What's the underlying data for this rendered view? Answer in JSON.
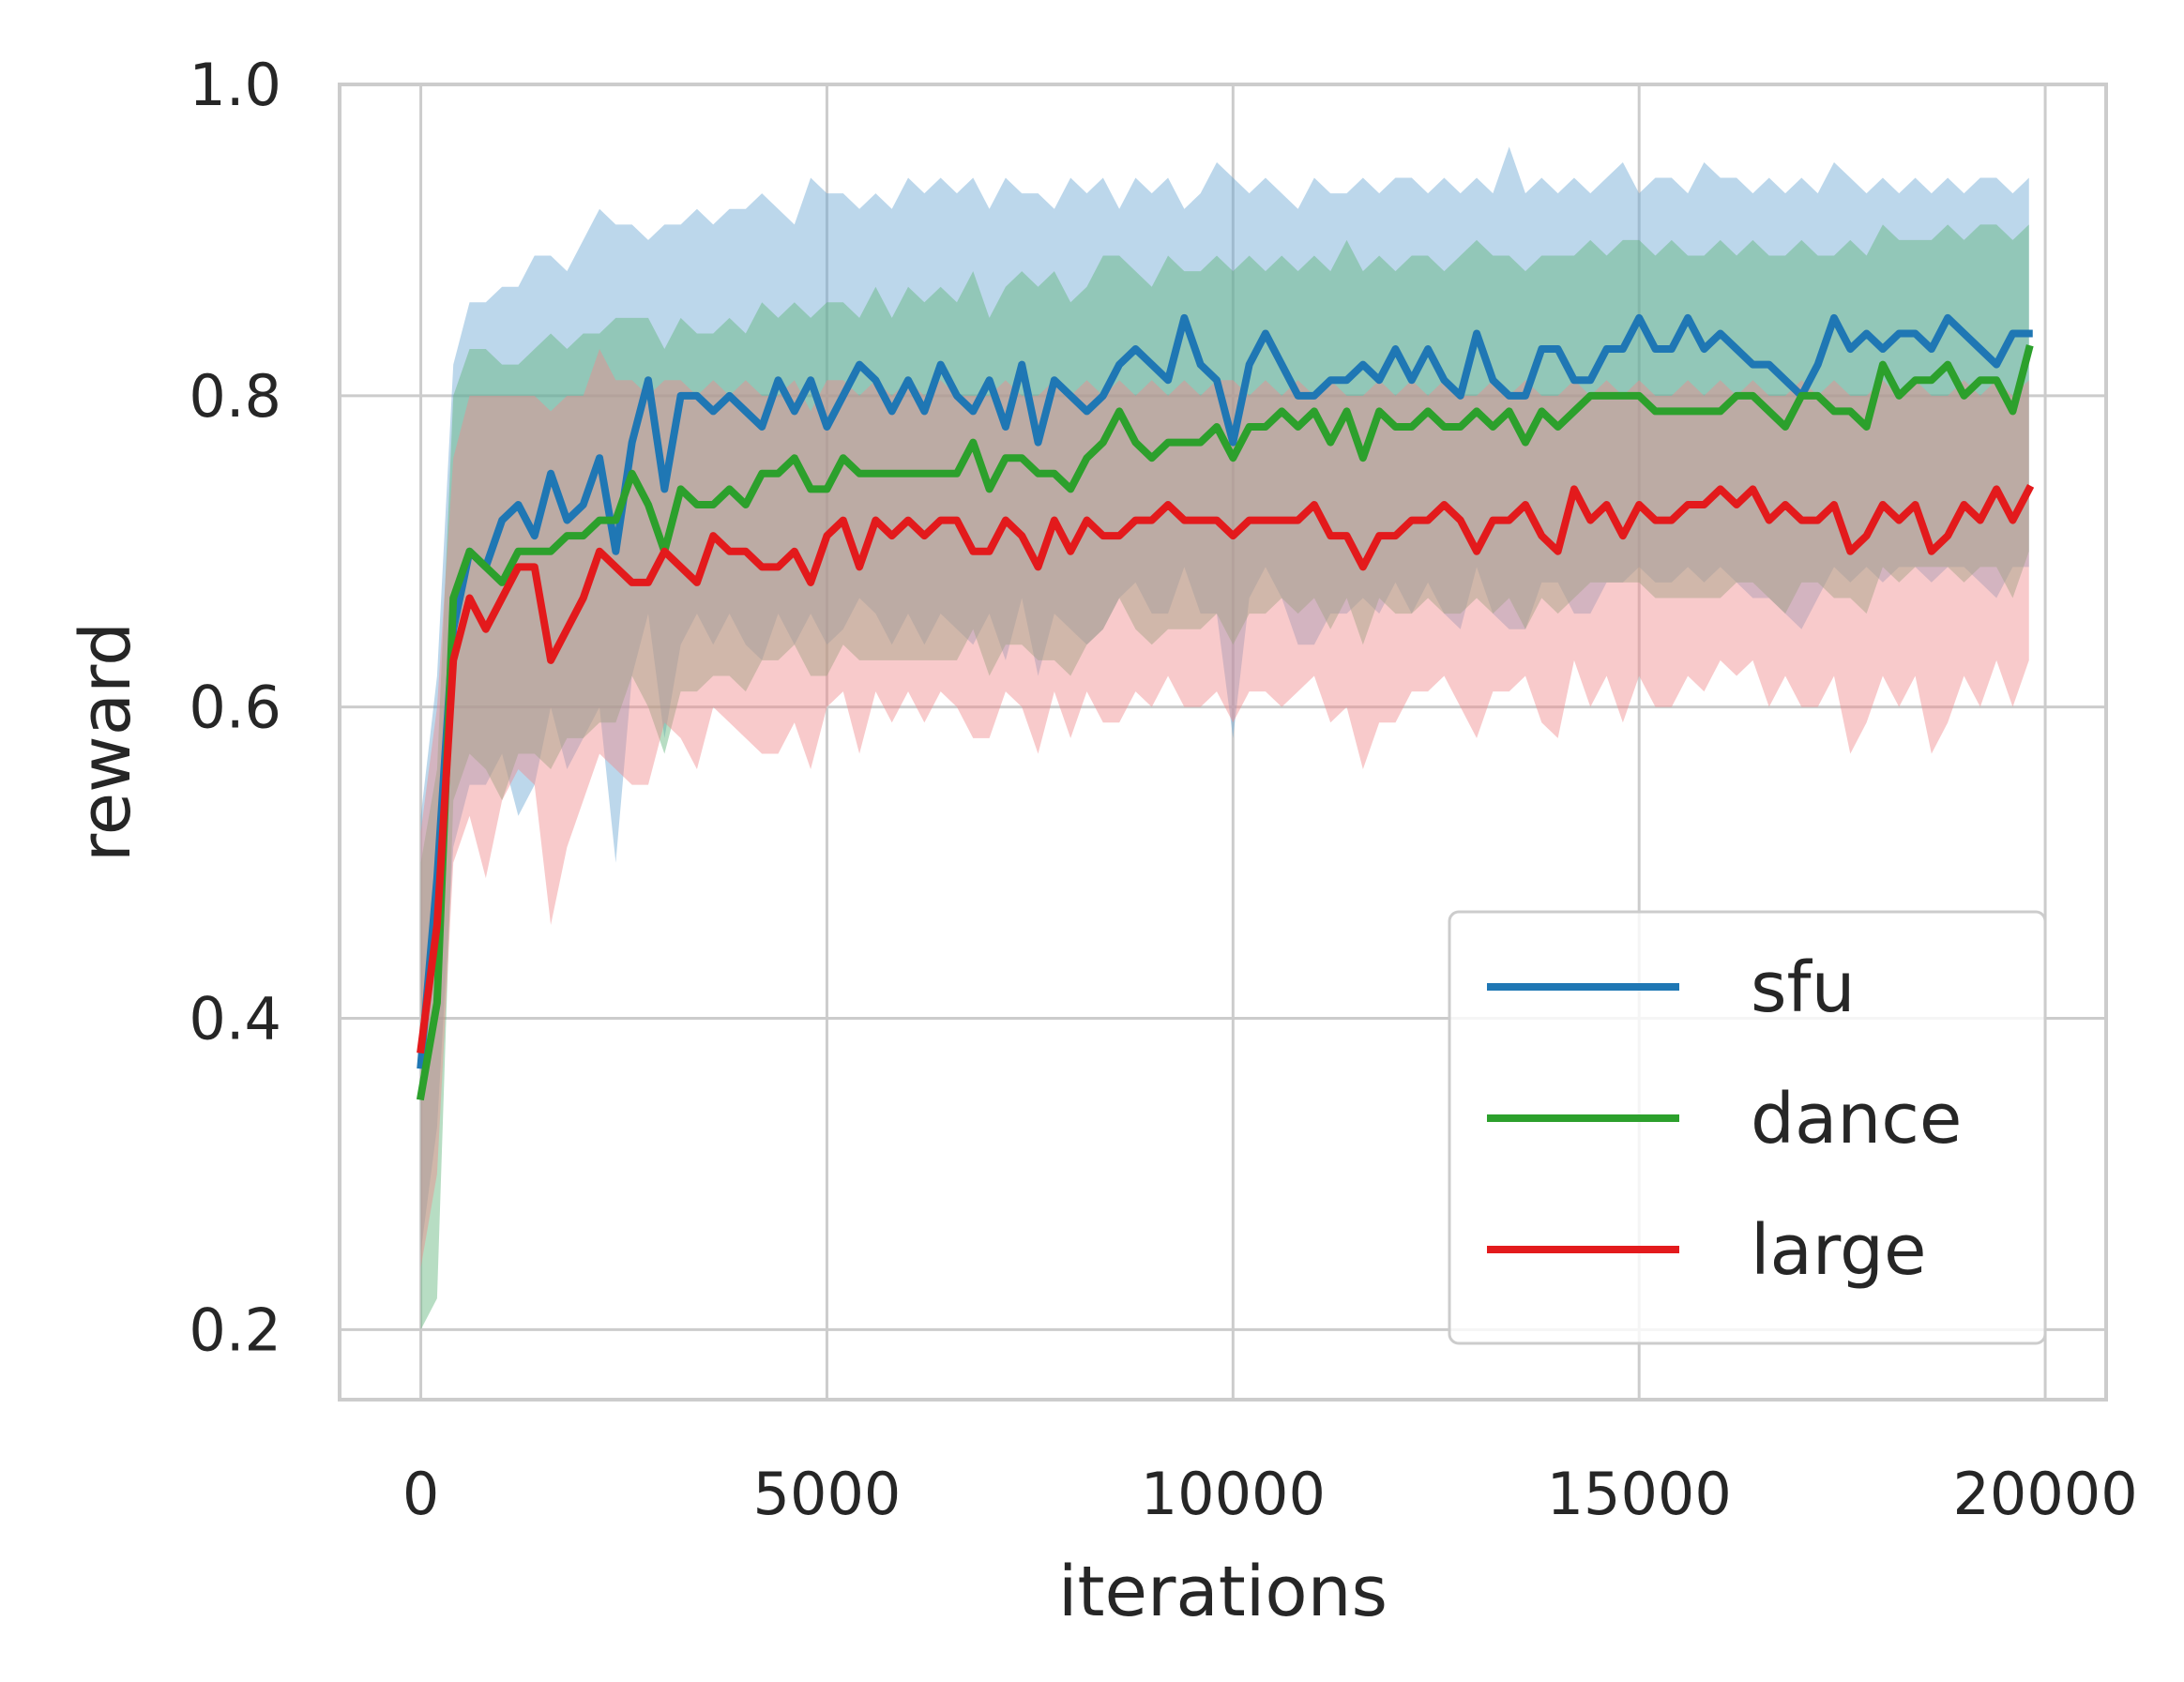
{
  "chart_data": {
    "type": "line",
    "xlabel": "iterations",
    "ylabel": "reward",
    "xlim": [
      -1000,
      20750
    ],
    "ylim": [
      0.155,
      1.0
    ],
    "xticks": [
      0,
      5000,
      10000,
      15000,
      20000
    ],
    "yticks": [
      0.2,
      0.4,
      0.6,
      0.8,
      1.0
    ],
    "xtick_labels": [
      "0",
      "5000",
      "10000",
      "15000",
      "20000"
    ],
    "ytick_labels": [
      "0.2",
      "0.4",
      "0.6",
      "0.8",
      "1.0"
    ],
    "grid": true,
    "legend_position": "lower right",
    "x": [
      0,
      200,
      400,
      600,
      800,
      1000,
      1200,
      1400,
      1600,
      1800,
      2000,
      2200,
      2400,
      2600,
      2800,
      3000,
      3200,
      3400,
      3600,
      3800,
      4000,
      4200,
      4400,
      4600,
      4800,
      5000,
      5200,
      5400,
      5600,
      5800,
      6000,
      6200,
      6400,
      6600,
      6800,
      7000,
      7200,
      7400,
      7600,
      7800,
      8000,
      8200,
      8400,
      8600,
      8800,
      9000,
      9200,
      9400,
      9600,
      9800,
      10000,
      10200,
      10400,
      10600,
      10800,
      11000,
      11200,
      11400,
      11600,
      11800,
      12000,
      12200,
      12400,
      12600,
      12800,
      13000,
      13200,
      13400,
      13600,
      13800,
      14000,
      14200,
      14400,
      14600,
      14800,
      15000,
      15200,
      15400,
      15600,
      15800,
      16000,
      16200,
      16400,
      16600,
      16800,
      17000,
      17200,
      17400,
      17600,
      17800,
      18000,
      18200,
      18400,
      18600,
      18800,
      19000,
      19200,
      19400,
      19600,
      19800
    ],
    "series": [
      {
        "name": "sfu",
        "color": "#1f77b4",
        "band_color": "#6aa6d3",
        "mean": [
          0.37,
          0.49,
          0.65,
          0.7,
          0.69,
          0.72,
          0.73,
          0.71,
          0.75,
          0.72,
          0.73,
          0.76,
          0.7,
          0.77,
          0.81,
          0.74,
          0.8,
          0.8,
          0.79,
          0.8,
          0.79,
          0.78,
          0.81,
          0.79,
          0.81,
          0.78,
          0.8,
          0.82,
          0.81,
          0.79,
          0.81,
          0.79,
          0.82,
          0.8,
          0.79,
          0.81,
          0.78,
          0.82,
          0.77,
          0.81,
          0.8,
          0.79,
          0.8,
          0.82,
          0.83,
          0.82,
          0.81,
          0.85,
          0.82,
          0.81,
          0.77,
          0.82,
          0.84,
          0.82,
          0.8,
          0.8,
          0.81,
          0.81,
          0.82,
          0.81,
          0.83,
          0.81,
          0.83,
          0.81,
          0.8,
          0.84,
          0.81,
          0.8,
          0.8,
          0.83,
          0.83,
          0.81,
          0.81,
          0.83,
          0.83,
          0.85,
          0.83,
          0.83,
          0.85,
          0.83,
          0.84,
          0.83,
          0.82,
          0.82,
          0.81,
          0.8,
          0.82,
          0.85,
          0.83,
          0.84,
          0.83,
          0.84,
          0.84,
          0.83,
          0.85,
          0.84,
          0.83,
          0.82,
          0.84,
          0.84
        ],
        "upper": [
          0.53,
          0.62,
          0.82,
          0.86,
          0.86,
          0.87,
          0.87,
          0.89,
          0.89,
          0.88,
          0.9,
          0.92,
          0.91,
          0.91,
          0.9,
          0.91,
          0.91,
          0.92,
          0.91,
          0.92,
          0.92,
          0.93,
          0.92,
          0.91,
          0.94,
          0.93,
          0.93,
          0.92,
          0.93,
          0.92,
          0.94,
          0.93,
          0.94,
          0.93,
          0.94,
          0.92,
          0.94,
          0.93,
          0.93,
          0.92,
          0.94,
          0.93,
          0.94,
          0.92,
          0.94,
          0.93,
          0.94,
          0.92,
          0.93,
          0.95,
          0.94,
          0.93,
          0.94,
          0.93,
          0.92,
          0.94,
          0.93,
          0.93,
          0.94,
          0.93,
          0.94,
          0.94,
          0.93,
          0.94,
          0.93,
          0.94,
          0.93,
          0.96,
          0.93,
          0.94,
          0.93,
          0.94,
          0.93,
          0.94,
          0.95,
          0.93,
          0.94,
          0.94,
          0.93,
          0.95,
          0.94,
          0.94,
          0.93,
          0.94,
          0.93,
          0.94,
          0.93,
          0.95,
          0.94,
          0.93,
          0.94,
          0.93,
          0.94,
          0.93,
          0.94,
          0.93,
          0.94,
          0.94,
          0.93,
          0.94
        ],
        "lower": [
          0.25,
          0.33,
          0.51,
          0.55,
          0.55,
          0.57,
          0.53,
          0.55,
          0.6,
          0.56,
          0.58,
          0.6,
          0.5,
          0.62,
          0.66,
          0.58,
          0.64,
          0.66,
          0.64,
          0.66,
          0.64,
          0.63,
          0.66,
          0.64,
          0.66,
          0.64,
          0.65,
          0.67,
          0.66,
          0.64,
          0.66,
          0.64,
          0.66,
          0.65,
          0.64,
          0.66,
          0.63,
          0.67,
          0.62,
          0.66,
          0.65,
          0.64,
          0.65,
          0.67,
          0.68,
          0.66,
          0.66,
          0.69,
          0.66,
          0.66,
          0.58,
          0.67,
          0.69,
          0.67,
          0.64,
          0.64,
          0.66,
          0.66,
          0.67,
          0.66,
          0.68,
          0.66,
          0.68,
          0.66,
          0.65,
          0.69,
          0.66,
          0.65,
          0.65,
          0.68,
          0.68,
          0.66,
          0.66,
          0.68,
          0.68,
          0.69,
          0.68,
          0.68,
          0.69,
          0.68,
          0.69,
          0.68,
          0.67,
          0.67,
          0.66,
          0.65,
          0.67,
          0.69,
          0.68,
          0.69,
          0.68,
          0.69,
          0.69,
          0.68,
          0.69,
          0.69,
          0.68,
          0.67,
          0.69,
          0.69
        ]
      },
      {
        "name": "dance",
        "color": "#2ca02c",
        "band_color": "#5fb37a",
        "mean": [
          0.35,
          0.41,
          0.67,
          0.7,
          0.69,
          0.68,
          0.7,
          0.7,
          0.7,
          0.71,
          0.71,
          0.72,
          0.72,
          0.75,
          0.73,
          0.7,
          0.74,
          0.73,
          0.73,
          0.74,
          0.73,
          0.75,
          0.75,
          0.76,
          0.74,
          0.74,
          0.76,
          0.75,
          0.75,
          0.75,
          0.75,
          0.75,
          0.75,
          0.75,
          0.77,
          0.74,
          0.76,
          0.76,
          0.75,
          0.75,
          0.74,
          0.76,
          0.77,
          0.79,
          0.77,
          0.76,
          0.77,
          0.77,
          0.77,
          0.78,
          0.76,
          0.78,
          0.78,
          0.79,
          0.78,
          0.79,
          0.77,
          0.79,
          0.76,
          0.79,
          0.78,
          0.78,
          0.79,
          0.78,
          0.78,
          0.79,
          0.78,
          0.79,
          0.77,
          0.79,
          0.78,
          0.79,
          0.8,
          0.8,
          0.8,
          0.8,
          0.79,
          0.79,
          0.79,
          0.79,
          0.79,
          0.8,
          0.8,
          0.79,
          0.78,
          0.8,
          0.8,
          0.79,
          0.79,
          0.78,
          0.82,
          0.8,
          0.81,
          0.81,
          0.82,
          0.8,
          0.81,
          0.81,
          0.79,
          0.83
        ],
        "upper": [
          0.5,
          0.56,
          0.8,
          0.83,
          0.83,
          0.82,
          0.82,
          0.83,
          0.84,
          0.83,
          0.84,
          0.84,
          0.85,
          0.85,
          0.85,
          0.83,
          0.85,
          0.84,
          0.84,
          0.85,
          0.84,
          0.86,
          0.85,
          0.86,
          0.85,
          0.86,
          0.86,
          0.85,
          0.87,
          0.85,
          0.87,
          0.86,
          0.87,
          0.86,
          0.88,
          0.85,
          0.87,
          0.88,
          0.87,
          0.88,
          0.86,
          0.87,
          0.89,
          0.89,
          0.88,
          0.87,
          0.89,
          0.88,
          0.88,
          0.89,
          0.88,
          0.89,
          0.88,
          0.89,
          0.88,
          0.89,
          0.88,
          0.9,
          0.88,
          0.89,
          0.88,
          0.89,
          0.89,
          0.88,
          0.89,
          0.9,
          0.89,
          0.89,
          0.88,
          0.89,
          0.89,
          0.89,
          0.9,
          0.89,
          0.9,
          0.9,
          0.89,
          0.9,
          0.89,
          0.89,
          0.9,
          0.89,
          0.9,
          0.89,
          0.89,
          0.9,
          0.89,
          0.89,
          0.9,
          0.89,
          0.91,
          0.9,
          0.9,
          0.9,
          0.91,
          0.9,
          0.91,
          0.91,
          0.9,
          0.91
        ],
        "lower": [
          0.2,
          0.22,
          0.54,
          0.57,
          0.56,
          0.54,
          0.57,
          0.57,
          0.56,
          0.58,
          0.58,
          0.59,
          0.59,
          0.62,
          0.6,
          0.57,
          0.61,
          0.61,
          0.62,
          0.62,
          0.61,
          0.63,
          0.63,
          0.64,
          0.62,
          0.62,
          0.64,
          0.63,
          0.63,
          0.63,
          0.63,
          0.63,
          0.63,
          0.63,
          0.65,
          0.62,
          0.64,
          0.64,
          0.63,
          0.63,
          0.62,
          0.64,
          0.65,
          0.67,
          0.65,
          0.64,
          0.65,
          0.65,
          0.65,
          0.66,
          0.64,
          0.66,
          0.66,
          0.67,
          0.66,
          0.67,
          0.65,
          0.67,
          0.64,
          0.67,
          0.66,
          0.66,
          0.67,
          0.66,
          0.66,
          0.67,
          0.66,
          0.67,
          0.65,
          0.67,
          0.66,
          0.67,
          0.68,
          0.68,
          0.68,
          0.68,
          0.67,
          0.67,
          0.67,
          0.67,
          0.67,
          0.68,
          0.68,
          0.67,
          0.66,
          0.68,
          0.68,
          0.67,
          0.67,
          0.66,
          0.69,
          0.68,
          0.69,
          0.69,
          0.69,
          0.68,
          0.69,
          0.69,
          0.67,
          0.7
        ]
      },
      {
        "name": "large",
        "color": "#e31a1c",
        "band_color": "#f08a8c",
        "mean": [
          0.38,
          0.46,
          0.63,
          0.67,
          0.65,
          0.67,
          0.69,
          0.69,
          0.63,
          0.65,
          0.67,
          0.7,
          0.69,
          0.68,
          0.68,
          0.7,
          0.69,
          0.68,
          0.71,
          0.7,
          0.7,
          0.69,
          0.69,
          0.7,
          0.68,
          0.71,
          0.72,
          0.69,
          0.72,
          0.71,
          0.72,
          0.71,
          0.72,
          0.72,
          0.7,
          0.7,
          0.72,
          0.71,
          0.69,
          0.72,
          0.7,
          0.72,
          0.71,
          0.71,
          0.72,
          0.72,
          0.73,
          0.72,
          0.72,
          0.72,
          0.71,
          0.72,
          0.72,
          0.72,
          0.72,
          0.73,
          0.71,
          0.71,
          0.69,
          0.71,
          0.71,
          0.72,
          0.72,
          0.73,
          0.72,
          0.7,
          0.72,
          0.72,
          0.73,
          0.71,
          0.7,
          0.74,
          0.72,
          0.73,
          0.71,
          0.73,
          0.72,
          0.72,
          0.73,
          0.73,
          0.74,
          0.73,
          0.74,
          0.72,
          0.73,
          0.72,
          0.72,
          0.73,
          0.7,
          0.71,
          0.73,
          0.72,
          0.73,
          0.7,
          0.71,
          0.73,
          0.72,
          0.74,
          0.72,
          0.74
        ],
        "upper": [
          0.52,
          0.6,
          0.76,
          0.8,
          0.8,
          0.8,
          0.8,
          0.8,
          0.79,
          0.8,
          0.8,
          0.83,
          0.81,
          0.81,
          0.8,
          0.81,
          0.81,
          0.8,
          0.81,
          0.8,
          0.81,
          0.8,
          0.8,
          0.81,
          0.79,
          0.81,
          0.81,
          0.8,
          0.81,
          0.8,
          0.81,
          0.8,
          0.81,
          0.8,
          0.8,
          0.8,
          0.81,
          0.8,
          0.8,
          0.81,
          0.8,
          0.81,
          0.8,
          0.81,
          0.8,
          0.81,
          0.8,
          0.81,
          0.8,
          0.81,
          0.81,
          0.8,
          0.81,
          0.8,
          0.81,
          0.8,
          0.81,
          0.8,
          0.8,
          0.81,
          0.8,
          0.81,
          0.8,
          0.81,
          0.8,
          0.8,
          0.81,
          0.8,
          0.81,
          0.8,
          0.8,
          0.81,
          0.8,
          0.81,
          0.8,
          0.81,
          0.8,
          0.8,
          0.81,
          0.8,
          0.81,
          0.8,
          0.81,
          0.8,
          0.8,
          0.81,
          0.8,
          0.81,
          0.8,
          0.8,
          0.81,
          0.8,
          0.81,
          0.8,
          0.8,
          0.81,
          0.8,
          0.81,
          0.8,
          0.81
        ],
        "lower": [
          0.24,
          0.3,
          0.5,
          0.53,
          0.49,
          0.54,
          0.56,
          0.55,
          0.46,
          0.51,
          0.54,
          0.57,
          0.56,
          0.55,
          0.55,
          0.59,
          0.58,
          0.56,
          0.6,
          0.59,
          0.58,
          0.57,
          0.57,
          0.59,
          0.56,
          0.6,
          0.61,
          0.57,
          0.61,
          0.59,
          0.61,
          0.59,
          0.61,
          0.6,
          0.58,
          0.58,
          0.61,
          0.6,
          0.57,
          0.61,
          0.58,
          0.61,
          0.59,
          0.59,
          0.61,
          0.6,
          0.62,
          0.6,
          0.6,
          0.61,
          0.59,
          0.61,
          0.61,
          0.6,
          0.61,
          0.62,
          0.59,
          0.6,
          0.56,
          0.59,
          0.59,
          0.61,
          0.61,
          0.62,
          0.6,
          0.58,
          0.61,
          0.61,
          0.62,
          0.59,
          0.58,
          0.63,
          0.6,
          0.62,
          0.59,
          0.62,
          0.6,
          0.6,
          0.62,
          0.61,
          0.63,
          0.62,
          0.63,
          0.6,
          0.62,
          0.6,
          0.6,
          0.62,
          0.57,
          0.59,
          0.62,
          0.6,
          0.62,
          0.57,
          0.59,
          0.62,
          0.6,
          0.63,
          0.6,
          0.63
        ]
      }
    ]
  }
}
